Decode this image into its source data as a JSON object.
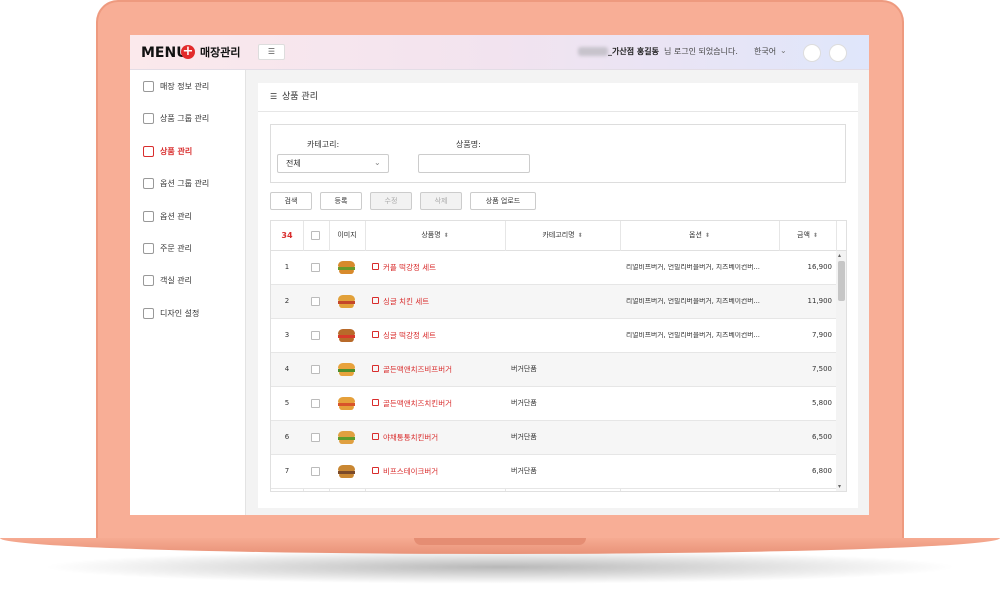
{
  "header": {
    "logo": "MENU",
    "logo_suffix": "매장관리",
    "user_store": "_가산점 홍길동",
    "login_message": "님 로그인 되었습니다.",
    "language": "한국어"
  },
  "sidebar": [
    {
      "label": "매장 정보 관리",
      "active": false
    },
    {
      "label": "상품 그룹 관리",
      "active": false
    },
    {
      "label": "상품 관리",
      "active": true
    },
    {
      "label": "옵션 그룹 관리",
      "active": false
    },
    {
      "label": "옵션 관리",
      "active": false
    },
    {
      "label": "주문 관리",
      "active": false
    },
    {
      "label": "객실 관리",
      "active": false
    },
    {
      "label": "디자인 설정",
      "active": false
    }
  ],
  "panel": {
    "title": "상품 관리"
  },
  "filters": {
    "category_label": "카테고리:",
    "category_value": "전체",
    "name_label": "상품명:"
  },
  "buttons": [
    {
      "label": "검색",
      "disabled": false
    },
    {
      "label": "등록",
      "disabled": false
    },
    {
      "label": "수정",
      "disabled": true
    },
    {
      "label": "삭제",
      "disabled": true
    },
    {
      "label": "상품 업로드",
      "disabled": false
    }
  ],
  "table": {
    "count": 34,
    "columns": [
      {
        "label": "이미지",
        "sortable": false
      },
      {
        "label": "상품명",
        "sortable": true
      },
      {
        "label": "카테고리명",
        "sortable": true
      },
      {
        "label": "옵션",
        "sortable": true
      },
      {
        "label": "금액",
        "sortable": true
      }
    ],
    "rows": [
      [
        1,
        "커플 떡강정 세트",
        null,
        "리얼비프버거, 언빌리버블버거, 치즈베이컨버...",
        "16,900"
      ],
      [
        2,
        "싱글 치킨 세트",
        null,
        "리얼비프버거, 언빌리버블버거, 치즈베이컨버...",
        "11,900"
      ],
      [
        3,
        "싱글 떡강정 세트",
        null,
        "리얼비프버거, 언빌리버블버거, 치즈베이컨버...",
        "7,900"
      ],
      [
        4,
        "골든맥앤치즈비프버거",
        "버거단품",
        null,
        "7,500"
      ],
      [
        5,
        "골든맥앤치즈치킨버거",
        "버거단품",
        null,
        "5,800"
      ],
      [
        6,
        "야채통통치킨버거",
        "버거단품",
        null,
        "6,500"
      ],
      [
        7,
        "비프스테이크버거",
        "버거단품",
        null,
        "6,800"
      ]
    ]
  }
}
